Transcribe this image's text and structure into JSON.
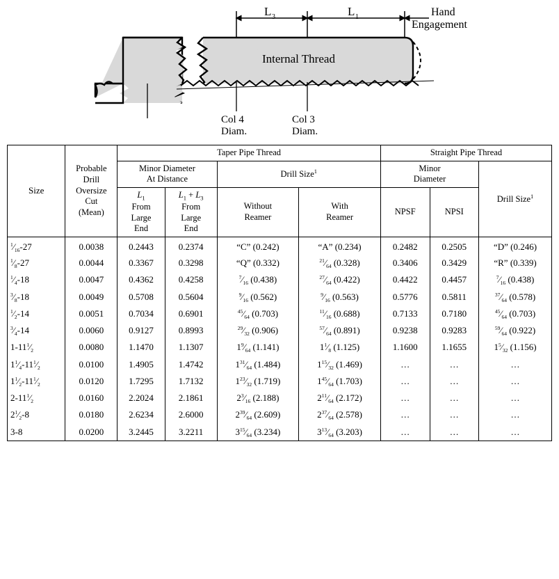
{
  "diagram": {
    "labels": {
      "L3": "L",
      "L3_sub": "3",
      "L1": "L",
      "L1_sub": "1",
      "hand": "Hand",
      "engagement": "Engagement",
      "internal_thread": "Internal Thread",
      "col4a": "Col 4",
      "col4b": "Diam.",
      "col3a": "Col 3",
      "col3b": "Diam."
    },
    "colors": {
      "fill": "#d9d9d9",
      "stroke": "#000000"
    }
  },
  "table": {
    "headers": {
      "taper": "Taper Pipe Thread",
      "straight": "Straight Pipe Thread",
      "minor_dist": "Minor Diameter At Distance",
      "drill_size": "Drill Size",
      "minor": "Minor Diameter",
      "size": "Size",
      "prob": "Probable Drill Oversize Cut (Mean)",
      "L1_a": "L",
      "L1_b": "1",
      "L1_c": "From Large End",
      "L13_a": "L",
      "L13_b1": "1",
      "L13_plus": " + L",
      "L13_b3": "3",
      "L13_c": "From Large End",
      "without": "Without Reamer",
      "with": "With Reamer",
      "npsf": "NPSF",
      "npsi": "NPSI",
      "drill_size2": "Drill Size"
    },
    "rows": [
      {
        "size_n": "1",
        "size_d": "16",
        "size_tpi": "-27",
        "prob": "0.0038",
        "d1": "0.2443",
        "d2": "0.2374",
        "wo": "“C” (0.242)",
        "wi": "“A” (0.234)",
        "npsf": "0.2482",
        "npsi": "0.2505",
        "ds": "“D” (0.246)"
      },
      {
        "size_n": "1",
        "size_d": "8",
        "size_tpi": "-27",
        "prob": "0.0044",
        "d1": "0.3367",
        "d2": "0.3298",
        "wo": "“Q” (0.332)",
        "wi_n": "21",
        "wi_d": "64",
        "wi_p": " (0.328)",
        "npsf": "0.3406",
        "npsi": "0.3429",
        "ds": "“R” (0.339)"
      },
      {
        "size_n": "1",
        "size_d": "4",
        "size_tpi": "-18",
        "prob": "0.0047",
        "d1": "0.4362",
        "d2": "0.4258",
        "wo_n": "7",
        "wo_d": "16",
        "wo_p": " (0.438)",
        "wi_n": "27",
        "wi_d": "64",
        "wi_p": " (0.422)",
        "npsf": "0.4422",
        "npsi": "0.4457",
        "ds_n": "7",
        "ds_d": "16",
        "ds_p": " (0.438)"
      },
      {
        "size_n": "3",
        "size_d": "8",
        "size_tpi": "-18",
        "prob": "0.0049",
        "d1": "0.5708",
        "d2": "0.5604",
        "wo_n": "9",
        "wo_d": "16",
        "wo_p": " (0.562)",
        "wi_n": "9",
        "wi_d": "16",
        "wi_p": " (0.563)",
        "npsf": "0.5776",
        "npsi": "0.5811",
        "ds_n": "37",
        "ds_d": "64",
        "ds_p": " (0.578)"
      },
      {
        "size_n": "1",
        "size_d": "2",
        "size_tpi": "-14",
        "prob": "0.0051",
        "d1": "0.7034",
        "d2": "0.6901",
        "wo_n": "45",
        "wo_d": "64",
        "wo_p": " (0.703)",
        "wi_n": "11",
        "wi_d": "16",
        "wi_p": " (0.688)",
        "npsf": "0.7133",
        "npsi": "0.7180",
        "ds_n": "45",
        "ds_d": "64",
        "ds_p": " (0.703)"
      },
      {
        "size_n": "3",
        "size_d": "4",
        "size_tpi": "-14",
        "prob": "0.0060",
        "d1": "0.9127",
        "d2": "0.8993",
        "wo_n": "29",
        "wo_d": "32",
        "wo_p": " (0.906)",
        "wi_n": "57",
        "wi_d": "64",
        "wi_p": " (0.891)",
        "npsf": "0.9238",
        "npsi": "0.9283",
        "ds_n": "59",
        "ds_d": "64",
        "ds_p": " (0.922)"
      },
      {
        "size_whole": "1-11",
        "size_n": "1",
        "size_d": "2",
        "prob": "0.0080",
        "d1": "1.1470",
        "d2": "1.1307",
        "wo_w": "1",
        "wo_n": "9",
        "wo_d": "64",
        "wo_p": " (1.141)",
        "wi_w": "1",
        "wi_n": "1",
        "wi_d": "8",
        "wi_p": " (1.125)",
        "npsf": "1.1600",
        "npsi": "1.1655",
        "ds_w": "1",
        "ds_n": "5",
        "ds_d": "32",
        "ds_p": " (1.156)"
      },
      {
        "size_w": "1",
        "size_wn": "1",
        "size_wd": "4",
        "size_tail": "-11",
        "size_n": "1",
        "size_d": "2",
        "prob": "0.0100",
        "d1": "1.4905",
        "d2": "1.4742",
        "wo_w": "1",
        "wo_n": "31",
        "wo_d": "64",
        "wo_p": " (1.484)",
        "wi_w": "1",
        "wi_n": "15",
        "wi_d": "32",
        "wi_p": " (1.469)",
        "npsf": "…",
        "npsi": "…",
        "ds": "…"
      },
      {
        "size_w": "1",
        "size_wn": "1",
        "size_wd": "2",
        "size_tail": "-11",
        "size_n": "1",
        "size_d": "2",
        "prob": "0.0120",
        "d1": "1.7295",
        "d2": "1.7132",
        "wo_w": "1",
        "wo_n": "23",
        "wo_d": "32",
        "wo_p": " (1.719)",
        "wi_w": "1",
        "wi_n": "45",
        "wi_d": "64",
        "wi_p": " (1.703)",
        "npsf": "…",
        "npsi": "…",
        "ds": "…"
      },
      {
        "size_whole": "2-11",
        "size_n": "1",
        "size_d": "2",
        "prob": "0.0160",
        "d1": "2.2024",
        "d2": "2.1861",
        "wo_w": "2",
        "wo_n": "3",
        "wo_d": "16",
        "wo_p": " (2.188)",
        "wi_w": "2",
        "wi_n": "11",
        "wi_d": "64",
        "wi_p": " (2.172)",
        "npsf": "…",
        "npsi": "…",
        "ds": "…"
      },
      {
        "size_w": "2",
        "size_wn": "1",
        "size_wd": "2",
        "size_plain": "-8",
        "prob": "0.0180",
        "d1": "2.6234",
        "d2": "2.6000",
        "wo_w": "2",
        "wo_n": "39",
        "wo_d": "64",
        "wo_p": " (2.609)",
        "wi_w": "2",
        "wi_n": "37",
        "wi_d": "64",
        "wi_p": " (2.578)",
        "npsf": "…",
        "npsi": "…",
        "ds": "…"
      },
      {
        "size_plain_full": "3-8",
        "prob": "0.0200",
        "d1": "3.2445",
        "d2": "3.2211",
        "wo_w": "3",
        "wo_n": "15",
        "wo_d": "64",
        "wo_p": " (3.234)",
        "wi_w": "3",
        "wi_n": "13",
        "wi_d": "64",
        "wi_p": " (3.203)",
        "npsf": "…",
        "npsi": "…",
        "ds": "…"
      }
    ]
  }
}
